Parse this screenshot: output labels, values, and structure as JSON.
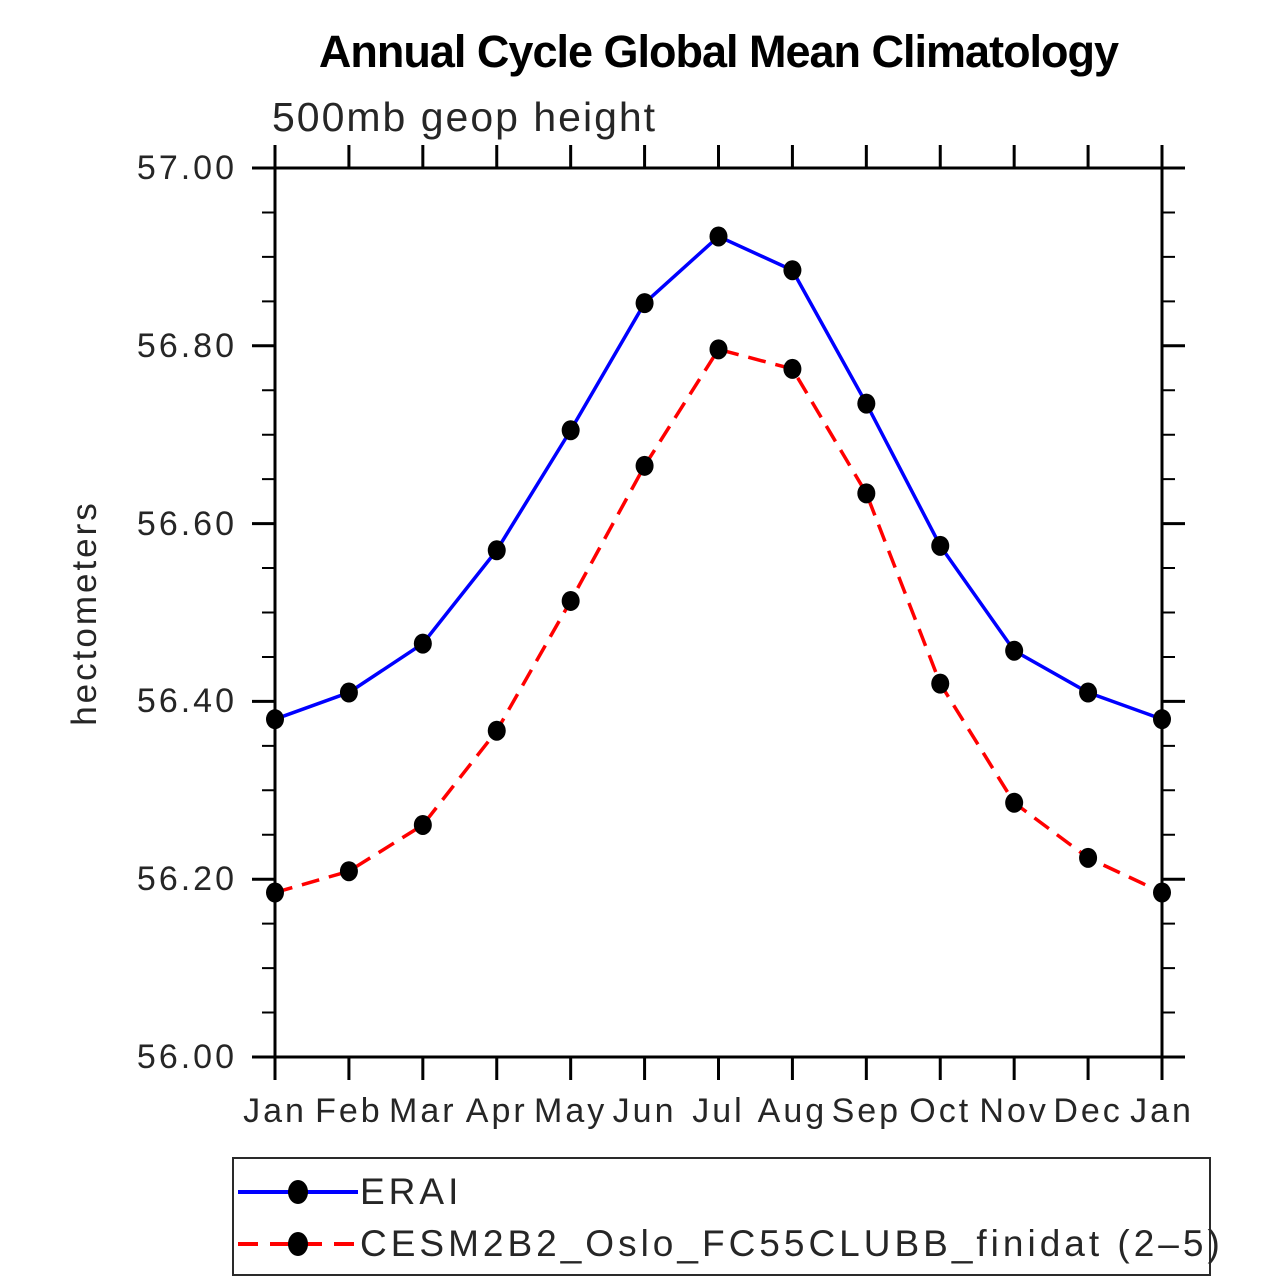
{
  "chart_data": {
    "type": "line",
    "title": "Annual Cycle Global Mean Climatology",
    "subtitle": "500mb geop height",
    "ylabel": "hectometers",
    "xlabel": "",
    "categories": [
      "Jan",
      "Feb",
      "Mar",
      "Apr",
      "May",
      "Jun",
      "Jul",
      "Aug",
      "Sep",
      "Oct",
      "Nov",
      "Dec",
      "Jan"
    ],
    "ylim": [
      56.0,
      57.0
    ],
    "ytick_labels": [
      {
        "value": 57.0,
        "label": "57.00"
      },
      {
        "value": 56.8,
        "label": "56.80"
      },
      {
        "value": 56.6,
        "label": "56.60"
      },
      {
        "value": 56.4,
        "label": "56.40"
      },
      {
        "value": 56.2,
        "label": "56.20"
      },
      {
        "value": 56.0,
        "label": "56.00"
      }
    ],
    "ytick_minor_step": 0.05,
    "grid": false,
    "legend_position": "bottom",
    "axis_color": "#000000",
    "marker": "filled-circle",
    "marker_color": "#000000",
    "series": [
      {
        "name": "ERAI",
        "color": "#0000ff",
        "line_style": "solid",
        "values": [
          56.38,
          56.41,
          56.465,
          56.57,
          56.705,
          56.848,
          56.923,
          56.885,
          56.735,
          56.575,
          56.457,
          56.41,
          56.38
        ]
      },
      {
        "name": "CESM2B2_Oslo_FC55CLUBB_finidat (2–5)",
        "color": "#ff0000",
        "line_style": "dashed",
        "values": [
          56.185,
          56.209,
          56.261,
          56.367,
          56.513,
          56.665,
          56.796,
          56.774,
          56.634,
          56.42,
          56.286,
          56.224,
          56.185
        ]
      }
    ]
  }
}
